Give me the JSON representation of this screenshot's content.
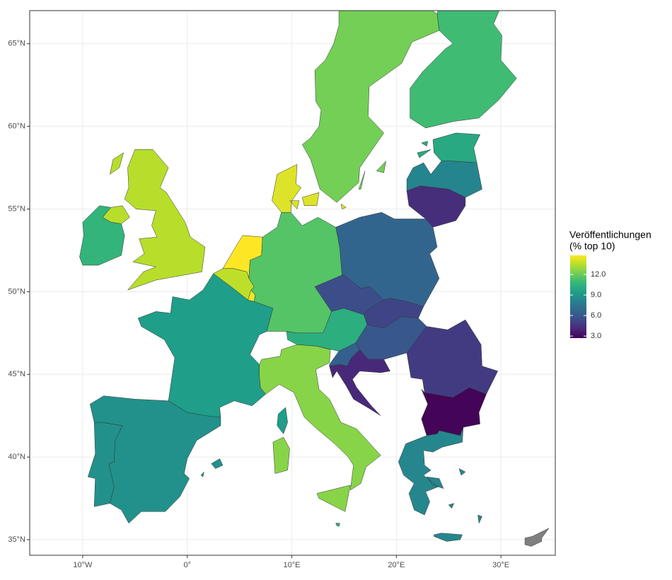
{
  "chart_data": {
    "type": "choropleth",
    "xlim": [
      -15.07,
      35.2
    ],
    "ylim": [
      34.06,
      67.0
    ],
    "xticks": [
      {
        "value": -10,
        "label": "10°W"
      },
      {
        "value": 0,
        "label": "0°"
      },
      {
        "value": 10,
        "label": "10°E"
      },
      {
        "value": 20,
        "label": "20°E"
      },
      {
        "value": 30,
        "label": "30°E"
      }
    ],
    "yticks": [
      {
        "value": 35,
        "label": "35°N"
      },
      {
        "value": 40,
        "label": "40°N"
      },
      {
        "value": 45,
        "label": "45°N"
      },
      {
        "value": 50,
        "label": "50°N"
      },
      {
        "value": 55,
        "label": "55°N"
      },
      {
        "value": 60,
        "label": "60°N"
      },
      {
        "value": 65,
        "label": "65°N"
      }
    ],
    "grid": true,
    "values": [
      8.8,
      8.8,
      9.4,
      13.5,
      10.6,
      14.8,
      13.6,
      14.6,
      11.5,
      14.2,
      12.2,
      11.0,
      10.0,
      8.2,
      4.3,
      6.6,
      5.6,
      5.2,
      10.3,
      6.0,
      6.4,
      4.1,
      4.8,
      2.8,
      8.3,
      12.6,
      10.4,
      null
    ],
    "colorscale": [
      "#440154",
      "#482878",
      "#3e4989",
      "#31688e",
      "#26828e",
      "#1f9e89",
      "#35b779",
      "#6ece58",
      "#b5de2b",
      "#fde725"
    ],
    "na_color": "#7f7f7f",
    "legend": {
      "title": [
        "Veröffentlichungen",
        "(% top 10)"
      ],
      "lim": [
        2.7,
        14.8
      ],
      "ticks": [
        {
          "value": 3,
          "label": "3.0"
        },
        {
          "value": 6,
          "label": "6.0"
        },
        {
          "value": 9,
          "label": "9.0"
        },
        {
          "value": 12,
          "label": "12.0"
        }
      ],
      "position": "right"
    }
  }
}
